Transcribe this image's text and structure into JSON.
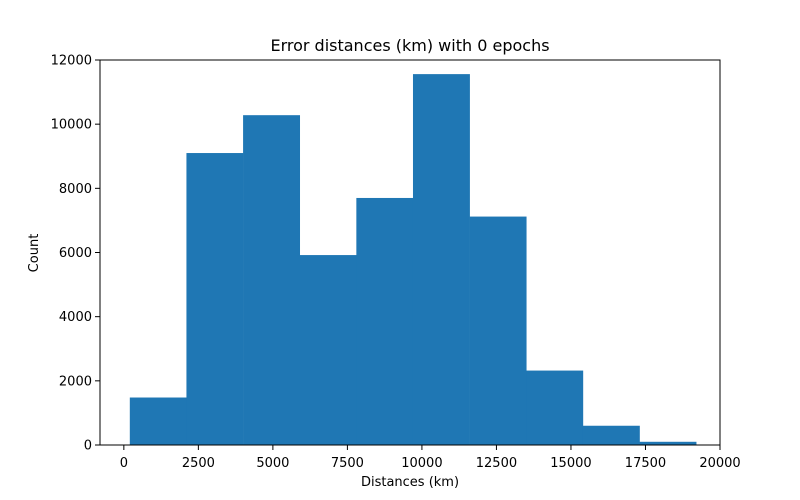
{
  "chart_data": {
    "type": "bar",
    "title": "Error distances (km) with 0 epochs",
    "xlabel": "Distances (km)",
    "ylabel": "Count",
    "xlim": [
      -800,
      20000
    ],
    "ylim": [
      0,
      12000
    ],
    "xticks": [
      0,
      2500,
      5000,
      7500,
      10000,
      12500,
      15000,
      17500,
      20000
    ],
    "yticks": [
      0,
      2000,
      4000,
      6000,
      8000,
      10000,
      12000
    ],
    "grid": false,
    "bar_color": "#1f77b4",
    "bin_edges": [
      200,
      2100,
      4000,
      5900,
      7800,
      9700,
      11600,
      13500,
      15400,
      17300,
      19200
    ],
    "values": [
      1480,
      9100,
      10280,
      5920,
      7700,
      11560,
      7120,
      2320,
      600,
      100
    ]
  }
}
